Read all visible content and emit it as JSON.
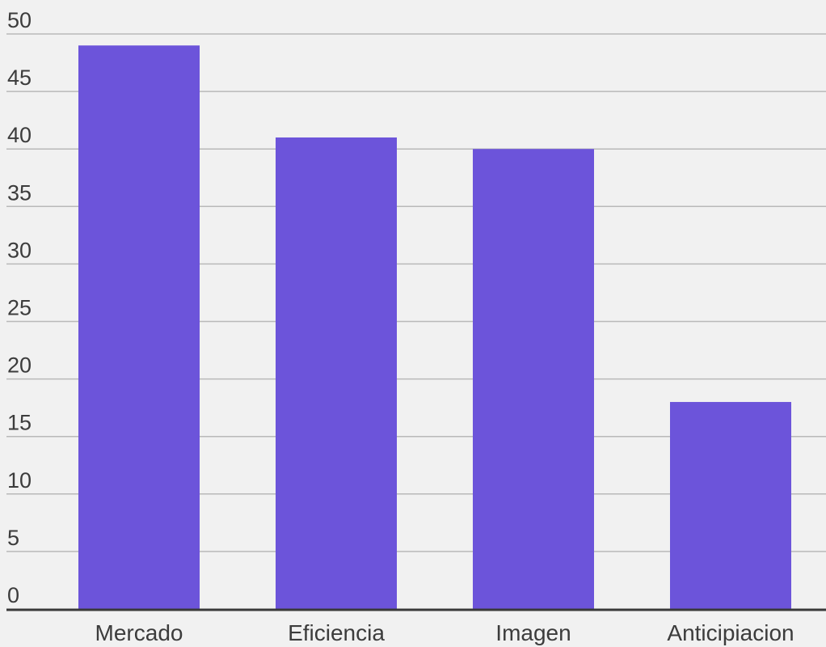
{
  "chart_data": {
    "type": "bar",
    "title": "",
    "xlabel": "",
    "ylabel": "",
    "categories": [
      "Mercado",
      "Eficiencia",
      "Imagen",
      "Anticipiacion"
    ],
    "values": [
      49,
      41,
      40,
      18
    ],
    "ylim": [
      0,
      50
    ],
    "yticks": [
      0,
      5,
      10,
      15,
      20,
      25,
      30,
      35,
      40,
      45,
      50
    ],
    "grid": true,
    "legend": "none",
    "colors": {
      "bar": "#6c54da",
      "grid": "#b9b9b9",
      "axis": "#3a3a3a",
      "background": "#f1f1f1",
      "text": "#3c3c3c"
    }
  }
}
